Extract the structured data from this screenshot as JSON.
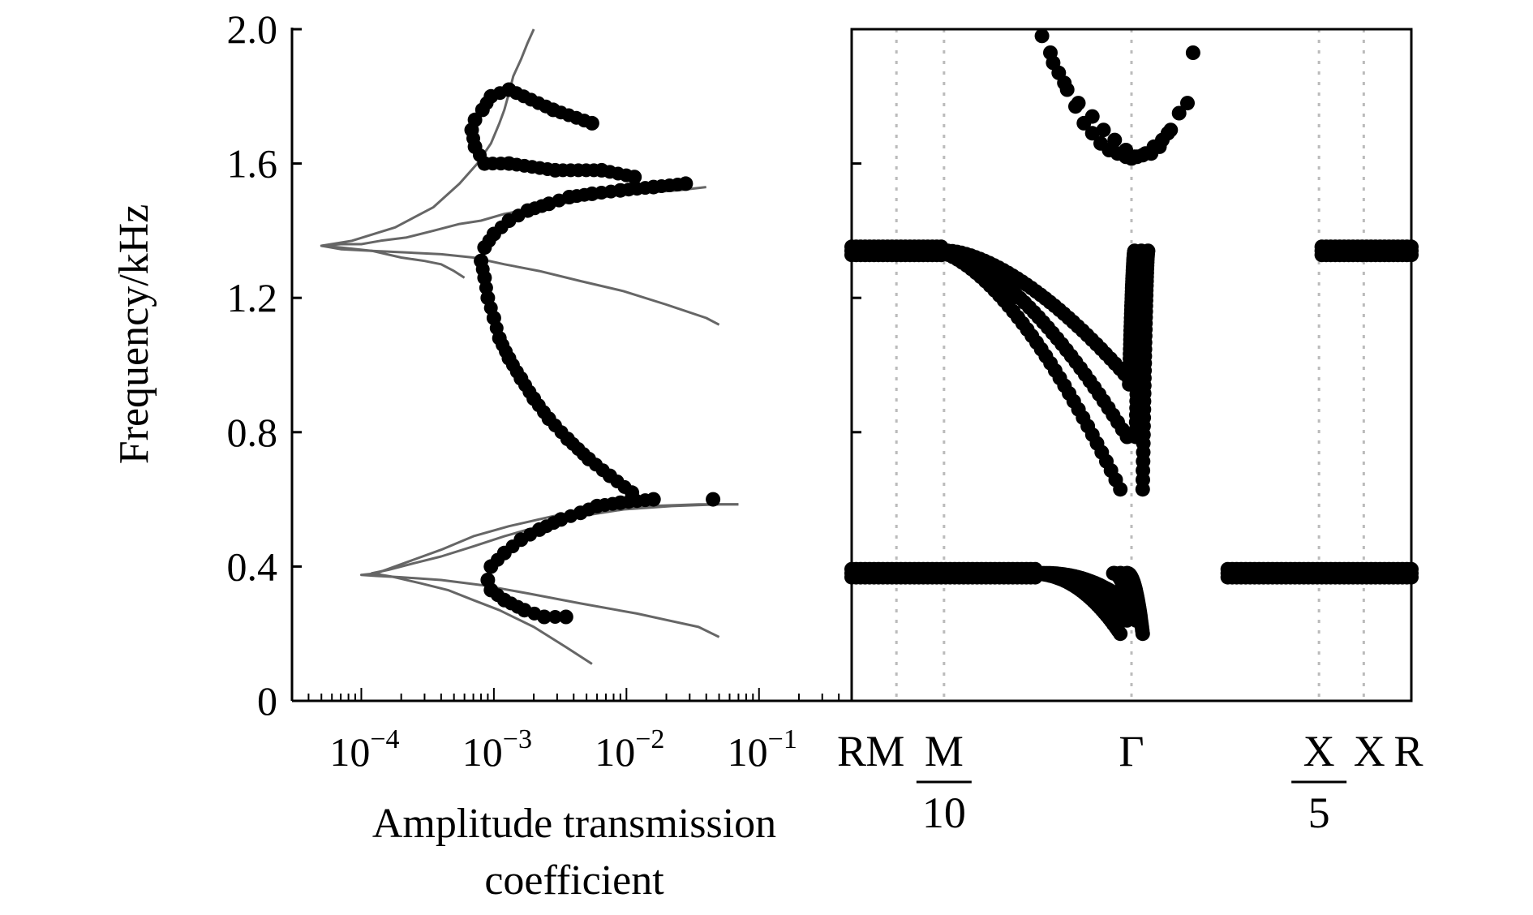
{
  "chart_data": [
    {
      "type": "scatter",
      "panel": "left",
      "xscale": "log",
      "xlim": [
        3e-05,
        0.5
      ],
      "ylim": [
        0,
        2.0
      ],
      "ylabel": "Frequency/kHz",
      "xlabel_line1": "Amplitude transmission",
      "xlabel_line2": "coefficient",
      "y_ticks": [
        {
          "value": 0,
          "label": "0"
        },
        {
          "value": 0.4,
          "label": "0.4"
        },
        {
          "value": 0.8,
          "label": "0.8"
        },
        {
          "value": 1.2,
          "label": "1.2"
        },
        {
          "value": 1.6,
          "label": "1.6"
        },
        {
          "value": 2.0,
          "label": "2.0"
        }
      ],
      "x_ticks": [
        {
          "value": 0.0001,
          "base": "10",
          "exp": "−4"
        },
        {
          "value": 0.001,
          "base": "10",
          "exp": "−3"
        },
        {
          "value": 0.01,
          "base": "10",
          "exp": "−2"
        },
        {
          "value": 0.1,
          "base": "10",
          "exp": "−1"
        }
      ],
      "grid": false,
      "series": [
        {
          "kind": "points",
          "color": "#000000",
          "x": [
            0.0035,
            0.0024,
            0.0017,
            0.0012,
            0.00095,
            0.0009,
            0.00095,
            0.0012,
            0.0016,
            0.0022,
            0.0032,
            0.0045,
            0.006,
            0.009,
            0.016,
            0.045,
            0.011,
            0.0075,
            0.0052,
            0.0036,
            0.0026,
            0.002,
            0.0016,
            0.0013,
            0.0011,
            0.001,
            0.0009,
            0.00085,
            0.0008,
            0.00085,
            0.001,
            0.0013,
            0.0018,
            0.0026,
            0.0037,
            0.0055,
            0.009,
            0.016,
            0.028,
            0.0115,
            0.0065,
            0.0029,
            0.0013,
            0.00085,
            0.00072,
            0.00068,
            0.00072,
            0.00082,
            0.00095,
            0.0013,
            0.0028,
            0.0055
          ],
          "y": [
            0.25,
            0.25,
            0.27,
            0.3,
            0.33,
            0.36,
            0.4,
            0.44,
            0.48,
            0.51,
            0.54,
            0.56,
            0.58,
            0.59,
            0.6,
            0.6,
            0.62,
            0.67,
            0.72,
            0.78,
            0.84,
            0.9,
            0.96,
            1.02,
            1.08,
            1.14,
            1.2,
            1.26,
            1.31,
            1.35,
            1.39,
            1.43,
            1.46,
            1.48,
            1.5,
            1.51,
            1.52,
            1.53,
            1.54,
            1.56,
            1.58,
            1.58,
            1.6,
            1.6,
            1.65,
            1.7,
            1.73,
            1.76,
            1.8,
            1.82,
            1.76,
            1.72
          ]
        },
        {
          "kind": "line",
          "color": "#666666",
          "x": [
            0.0055,
            0.0035,
            0.002,
            0.0011,
            0.0007,
            0.00045,
            0.00028,
            0.00017,
            0.00012,
            0.00016,
            0.00025,
            0.0004,
            0.0007,
            0.0012,
            0.0022,
            0.0045,
            0.0095,
            0.022,
            0.05,
            0.07
          ],
          "y": [
            0.11,
            0.16,
            0.22,
            0.27,
            0.3,
            0.33,
            0.35,
            0.37,
            0.38,
            0.39,
            0.41,
            0.43,
            0.46,
            0.49,
            0.52,
            0.55,
            0.57,
            0.58,
            0.585,
            0.585
          ]
        },
        {
          "kind": "line",
          "color": "#666666",
          "x": [
            0.07,
            0.035,
            0.015,
            0.006,
            0.0028,
            0.0013,
            0.0007,
            0.0004,
            0.00021,
            0.00013,
            0.0001,
            0.00013,
            0.0002,
            0.0004,
            0.0008,
            0.0018,
            0.0045,
            0.012,
            0.035,
            0.05
          ],
          "y": [
            0.585,
            0.585,
            0.58,
            0.57,
            0.55,
            0.52,
            0.49,
            0.45,
            0.41,
            0.38,
            0.375,
            0.372,
            0.368,
            0.36,
            0.345,
            0.32,
            0.29,
            0.26,
            0.22,
            0.19
          ]
        },
        {
          "kind": "line",
          "color": "#666666",
          "x": [
            0.002,
            0.0018,
            0.0016,
            0.0014,
            0.0013,
            0.0012,
            0.0011,
            0.00095,
            0.00075,
            0.00055,
            0.00035,
            0.00018,
            8.5e-05,
            5e-05,
            7e-05,
            0.00012,
            0.00022,
            0.0004,
            0.0007,
            0.0012,
            0.0022,
            0.0045,
            0.0095,
            0.02,
            0.04,
            0.05
          ],
          "y": [
            2.0,
            1.96,
            1.91,
            1.86,
            1.81,
            1.76,
            1.72,
            1.66,
            1.6,
            1.54,
            1.47,
            1.41,
            1.37,
            1.355,
            1.345,
            1.34,
            1.335,
            1.33,
            1.32,
            1.3,
            1.28,
            1.25,
            1.22,
            1.18,
            1.14,
            1.12
          ]
        },
        {
          "kind": "line",
          "color": "#666666",
          "x": [
            0.04,
            0.024,
            0.01,
            0.0045,
            0.0022,
            0.0012,
            0.0008,
            0.00055,
            0.00035,
            0.00022,
            0.00014,
            0.0001,
            7e-05,
            5e-05,
            7e-05,
            0.00012,
            0.0002,
            0.0003,
            0.0004,
            0.0005,
            0.0006
          ],
          "y": [
            1.53,
            1.52,
            1.51,
            1.49,
            1.47,
            1.45,
            1.43,
            1.42,
            1.4,
            1.38,
            1.37,
            1.36,
            1.36,
            1.355,
            1.35,
            1.34,
            1.32,
            1.31,
            1.3,
            1.28,
            1.26
          ]
        }
      ]
    },
    {
      "type": "scatter",
      "panel": "right",
      "xlim": [
        0,
        1
      ],
      "ylim": [
        0,
        2.0
      ],
      "points_color": "#000000",
      "vlines": [
        0.08,
        0.165,
        0.5,
        0.835,
        0.915
      ],
      "vline_color": "#bbbbbb",
      "x_labels": [
        {
          "id": "R1",
          "pos": 0.0,
          "text": "R"
        },
        {
          "id": "M",
          "pos": 0.06,
          "text": "M"
        },
        {
          "id": "M10",
          "pos": 0.165,
          "num": "M",
          "den": "10"
        },
        {
          "id": "Gamma",
          "pos": 0.5,
          "text": "Γ"
        },
        {
          "id": "X5",
          "pos": 0.835,
          "num": "X",
          "den": "5"
        },
        {
          "id": "X",
          "pos": 0.925,
          "text": "X"
        },
        {
          "id": "R2",
          "pos": 0.995,
          "text": "R"
        }
      ],
      "y_ticks": [
        0.4,
        0.8,
        1.2,
        1.6
      ],
      "bands": [
        {
          "name": "band-low",
          "y0": 0.38,
          "ymin": 0.2,
          "a_left": 0.33,
          "a_right": 0.47,
          "steep": 2.2,
          "branches": [
            0,
            0.04,
            0.08
          ]
        },
        {
          "name": "band-mid",
          "y0": 1.34,
          "ymin": 0.63,
          "a_left": 0.15,
          "a_right": 0.51,
          "steep": 1.6,
          "branches": [
            0,
            0.05,
            0.1
          ]
        },
        {
          "name": "band-top-left",
          "x": [
            0.34,
            0.355,
            0.37,
            0.385,
            0.4,
            0.415,
            0.43,
            0.445,
            0.46,
            0.475,
            0.49,
            0.5,
            0.51,
            0.525,
            0.54,
            0.555,
            0.57,
            0.585,
            0.61,
            0.36,
            0.38,
            0.405,
            0.43,
            0.45,
            0.47,
            0.49,
            0.505,
            0.52,
            0.535,
            0.55,
            0.565,
            0.6
          ],
          "y": [
            1.98,
            1.93,
            1.87,
            1.82,
            1.77,
            1.72,
            1.69,
            1.66,
            1.64,
            1.63,
            1.62,
            1.615,
            1.62,
            1.63,
            1.65,
            1.67,
            1.7,
            1.75,
            1.93,
            1.9,
            1.84,
            1.78,
            1.74,
            1.7,
            1.67,
            1.64,
            1.62,
            1.625,
            1.63,
            1.65,
            1.69,
            1.78
          ]
        }
      ]
    }
  ]
}
